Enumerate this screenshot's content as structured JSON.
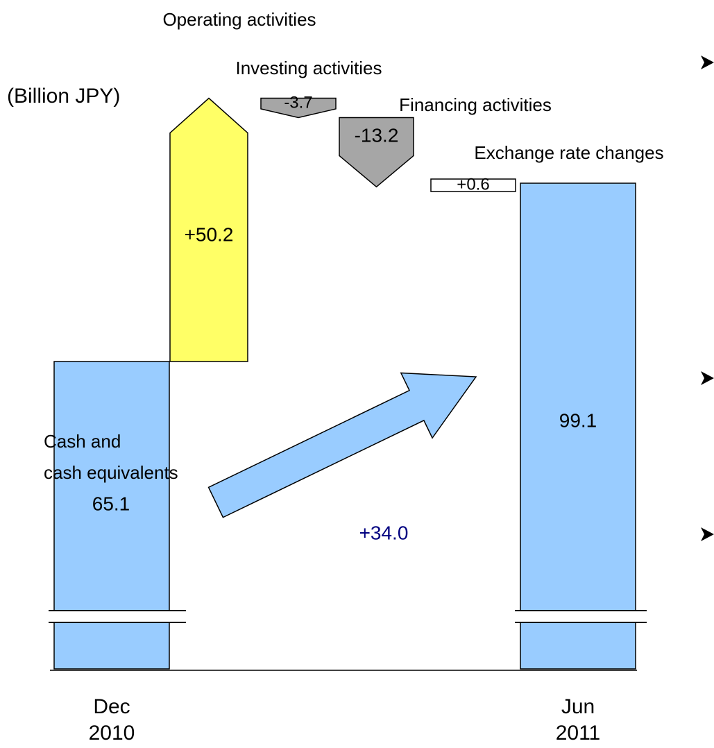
{
  "chart_data": {
    "type": "waterfall",
    "unit": "(Billion JPY)",
    "bars": [
      {
        "month": "Dec",
        "year": "2010",
        "label_lines": [
          "Cash and",
          "cash equivalents"
        ],
        "value": 65.1,
        "color": "#99ccff"
      },
      {
        "month": "Jun",
        "year": "2011",
        "value": 99.1,
        "color": "#99ccff"
      }
    ],
    "steps": [
      {
        "name": "Operating activities",
        "value": 50.2,
        "value_label": "+50.2",
        "color": "#ffff66"
      },
      {
        "name": "Investing activities",
        "value": -3.7,
        "color": "#a6a6a6"
      },
      {
        "name": "Financing activities",
        "value": -13.2,
        "color": "#a6a6a6"
      },
      {
        "name": "Exchange rate changes",
        "value": 0.6,
        "value_label": "+0.6",
        "color": "#ffffff"
      }
    ],
    "change": {
      "value": 34.0,
      "value_label": "+34.0",
      "color": "#99ccff",
      "label_color": "#000080"
    }
  }
}
